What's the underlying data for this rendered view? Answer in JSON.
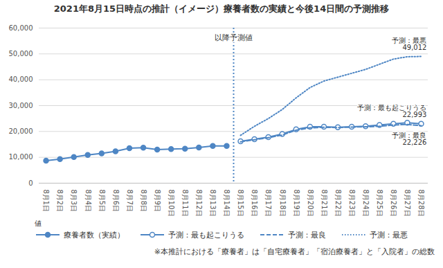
{
  "chart_data": {
    "type": "line",
    "title": "2021年8月15日時点の推計（イメージ）療養者数の実績と今後14日間の予測推移",
    "categories": [
      "8月1日",
      "8月2日",
      "8月3日",
      "8月4日",
      "8月5日",
      "8月6日",
      "8月7日",
      "8月8日",
      "8月9日",
      "8月10日",
      "8月11日",
      "8月12日",
      "8月13日",
      "8月14日",
      "8月15日",
      "8月16日",
      "8月17日",
      "8月18日",
      "8月19日",
      "8月20日",
      "8月21日",
      "8月22日",
      "8月23日",
      "8月24日",
      "8月25日",
      "8月26日",
      "8月27日",
      "8月28日"
    ],
    "series": [
      {
        "name": "療養者数（実績）",
        "color": "#4e86c4",
        "marker": "circle",
        "line_style": "solid",
        "values": [
          8700,
          9300,
          10100,
          10900,
          11500,
          12300,
          13500,
          13700,
          13000,
          13200,
          13300,
          13800,
          14400,
          14400,
          null,
          null,
          null,
          null,
          null,
          null,
          null,
          null,
          null,
          null,
          null,
          null,
          null,
          null
        ]
      },
      {
        "name": "予測：最も起こりうる",
        "color": "#4e86c4",
        "marker": "open_circle",
        "line_style": "solid",
        "values": [
          null,
          null,
          null,
          null,
          null,
          null,
          null,
          null,
          null,
          null,
          null,
          null,
          null,
          null,
          16200,
          17000,
          17800,
          19000,
          20800,
          21800,
          21800,
          21600,
          21800,
          22000,
          22500,
          23000,
          23400,
          22993
        ]
      },
      {
        "name": "予測：最良",
        "color": "#4e86c4",
        "marker": "none",
        "line_style": "dashed",
        "values": [
          null,
          null,
          null,
          null,
          null,
          null,
          null,
          null,
          null,
          null,
          null,
          null,
          null,
          null,
          16000,
          16800,
          17600,
          18600,
          20500,
          21400,
          21600,
          21500,
          21700,
          21800,
          22000,
          22500,
          22700,
          22226
        ]
      },
      {
        "name": "予測：最悪",
        "color": "#4e86c4",
        "marker": "none",
        "line_style": "dotted",
        "values": [
          null,
          null,
          null,
          null,
          null,
          null,
          null,
          null,
          null,
          null,
          null,
          null,
          null,
          null,
          18500,
          22000,
          25000,
          28500,
          33000,
          37000,
          39500,
          41000,
          42500,
          44000,
          46000,
          48000,
          48900,
          49012
        ]
      }
    ],
    "ylim": [
      0,
      60000
    ],
    "yticks": [
      0,
      {
        "value": 10000,
        "label": "10,000"
      },
      {
        "value": 20000,
        "label": "20,000"
      },
      {
        "value": 30000,
        "label": "30,000"
      },
      {
        "value": 40000,
        "label": "40,000"
      },
      {
        "value": 50000,
        "label": "50,000"
      },
      {
        "value": 60000,
        "label": "60,000"
      }
    ],
    "grid": true,
    "divider_label": "以降予測値",
    "annotations": [
      {
        "text": "予測：最悪",
        "x": "8月28日",
        "value": 49012,
        "value_label": "49,012"
      },
      {
        "text": "予測：最も起こりうる",
        "x": "8月28日",
        "value": 22993,
        "value_label": "22,993"
      },
      {
        "text": "予測：最良",
        "x": "8月28日",
        "value": 22226,
        "value_label": "22,226"
      }
    ],
    "legend_title": "値",
    "caption": "※本推計における「療養者」は「自宅療養者」「宿泊療養者」と「入院者」の総数"
  }
}
